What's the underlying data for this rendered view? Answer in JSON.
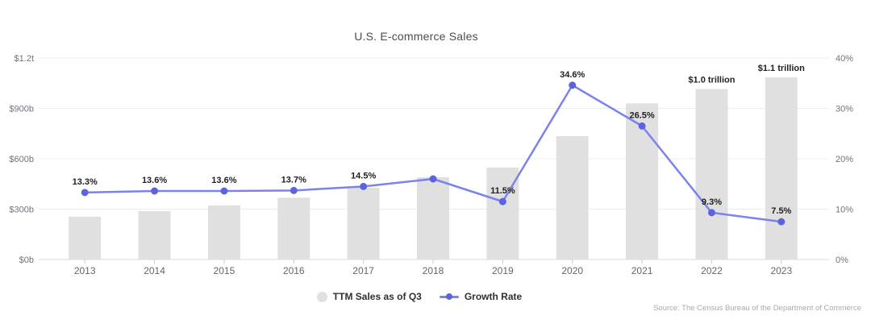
{
  "chart": {
    "title": "U.S. E-commerce Sales",
    "source": "Source: The Census Bureau of the Department of Commerce",
    "colors": {
      "bar_fill": "#e0e0e0",
      "line": "#7b82ec",
      "point": "#5d64db",
      "grid": "#ededed",
      "axis_line": "#d7dae0",
      "tick": "#c9ccd3",
      "axis_label": "#6e737c",
      "category_label": "#666666",
      "data_label": "#1f1f1f"
    }
  },
  "chart_data": {
    "type": "bar+line",
    "title": "U.S. E-commerce Sales",
    "categories": [
      "2013",
      "2014",
      "2015",
      "2016",
      "2017",
      "2018",
      "2019",
      "2020",
      "2021",
      "2022",
      "2023"
    ],
    "series": [
      {
        "name": "TTM Sales as of Q3",
        "type": "bar",
        "axis": "left",
        "unit": "USD billions",
        "values": [
          255,
          288,
          322,
          368,
          427,
          490,
          548,
          735,
          930,
          1015,
          1085
        ],
        "bar_labels": [
          "",
          "",
          "",
          "",
          "",
          "",
          "",
          "",
          "",
          "$1.0 trillion",
          "$1.1 trillion"
        ]
      },
      {
        "name": "Growth Rate",
        "type": "line",
        "axis": "right",
        "unit": "percent",
        "values": [
          13.3,
          13.6,
          13.6,
          13.7,
          14.5,
          16.0,
          11.5,
          34.6,
          26.5,
          9.3,
          7.5
        ],
        "point_labels": [
          "13.3%",
          "13.6%",
          "13.6%",
          "13.7%",
          "14.5%",
          "",
          "11.5%",
          "34.6%",
          "26.5%",
          "9.3%",
          "7.5%"
        ]
      }
    ],
    "left_axis": {
      "min": 0,
      "max": 1200,
      "tick_values": [
        0,
        300,
        600,
        900,
        1200
      ],
      "tick_labels": [
        "$0b",
        "$300b",
        "$600b",
        "$900b",
        "$1.2t"
      ]
    },
    "right_axis": {
      "min": 0,
      "max": 40,
      "tick_values": [
        0,
        10,
        20,
        30,
        40
      ],
      "tick_labels": [
        "0%",
        "10%",
        "20%",
        "30%",
        "40%"
      ]
    },
    "grid": true,
    "legend_position": "bottom"
  }
}
